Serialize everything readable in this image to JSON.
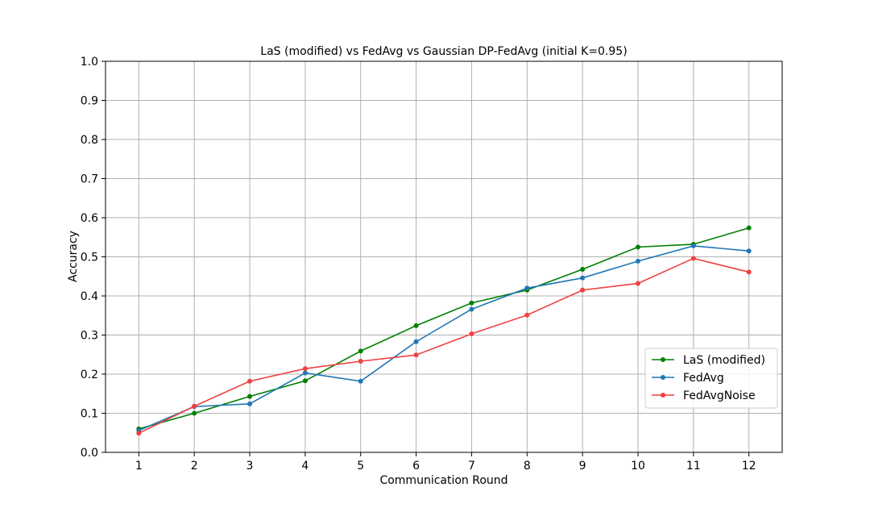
{
  "chart_data": {
    "type": "line",
    "title": "LaS (modified) vs FedAvg vs Gaussian DP-FedAvg (initial K=0.95)",
    "xlabel": "Communication Round",
    "ylabel": "Accuracy",
    "x": [
      1,
      2,
      3,
      4,
      5,
      6,
      7,
      8,
      9,
      10,
      11,
      12
    ],
    "xlim": [
      0.4,
      12.6
    ],
    "ylim": [
      0.0,
      1.0
    ],
    "xticks": [
      "1",
      "2",
      "3",
      "4",
      "5",
      "6",
      "7",
      "8",
      "9",
      "10",
      "11",
      "12"
    ],
    "yticks": [
      "0.0",
      "0.1",
      "0.2",
      "0.3",
      "0.4",
      "0.5",
      "0.6",
      "0.7",
      "0.8",
      "0.9",
      "1.0"
    ],
    "grid": true,
    "legend_position": "lower-right",
    "series": [
      {
        "name": "LaS (modified)",
        "color": "#008000",
        "values": [
          0.06,
          0.1,
          0.143,
          0.183,
          0.259,
          0.324,
          0.382,
          0.415,
          0.468,
          0.525,
          0.532,
          0.574
        ]
      },
      {
        "name": "FedAvg",
        "color": "#1f77b4",
        "values": [
          0.056,
          0.117,
          0.124,
          0.203,
          0.182,
          0.283,
          0.366,
          0.42,
          0.446,
          0.489,
          0.528,
          0.515
        ]
      },
      {
        "name": "FedAvgNoise",
        "color": "#f04040",
        "values": [
          0.049,
          0.118,
          0.182,
          0.214,
          0.233,
          0.249,
          0.303,
          0.351,
          0.415,
          0.432,
          0.496,
          0.461
        ]
      }
    ]
  }
}
